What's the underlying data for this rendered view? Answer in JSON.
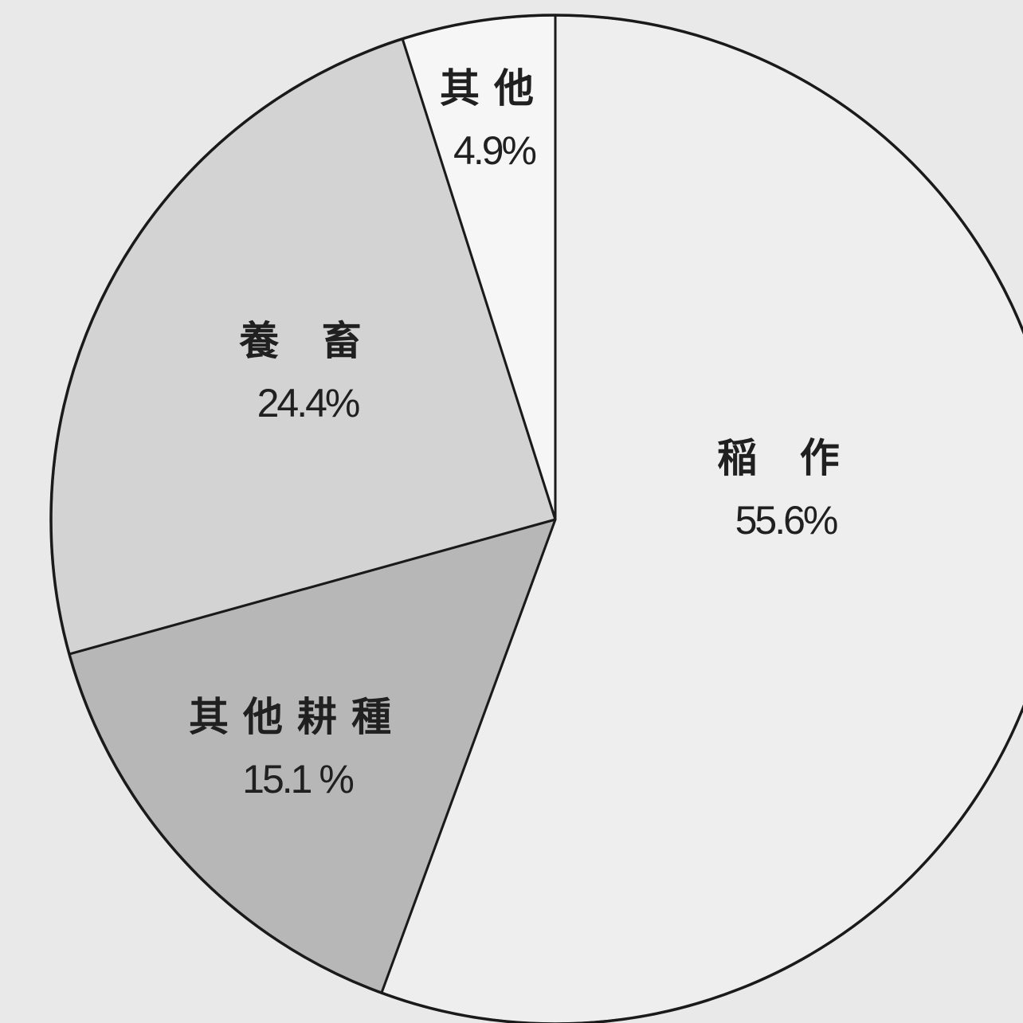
{
  "chart_data": {
    "type": "pie",
    "title": "",
    "start_angle": "top, clockwise",
    "slices": [
      {
        "label": "稲 作",
        "value": 55.6,
        "value_label": "55.6%",
        "color": "#eeeeee"
      },
      {
        "label": "其他耕種",
        "value": 15.1,
        "value_label": "15.1 %",
        "color": "#b7b7b7"
      },
      {
        "label": "養 畜",
        "value": 24.4,
        "value_label": "24.4%",
        "color": "#d3d3d3"
      },
      {
        "label": "其他",
        "value": 4.9,
        "value_label": "4.9%",
        "color": "#f6f6f6"
      }
    ]
  }
}
